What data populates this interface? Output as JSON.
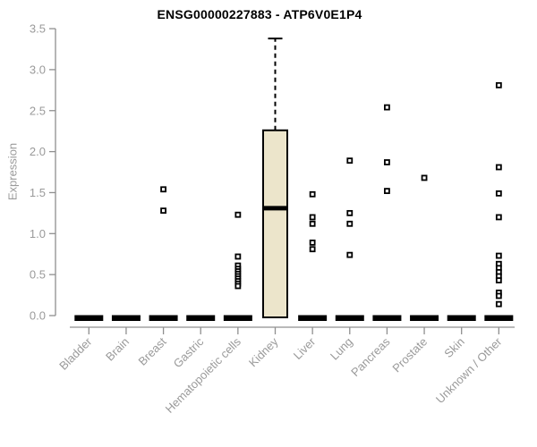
{
  "chart_data": {
    "type": "boxplot",
    "title": "ENSG00000227883 - ATP6V0E1P4",
    "ylabel": "Expression",
    "xlabel": "",
    "ylim": [
      0,
      3.5
    ],
    "yticks": [
      "0.0",
      "0.5",
      "1.0",
      "1.5",
      "2.0",
      "2.5",
      "3.0",
      "3.5"
    ],
    "grid": "off",
    "legend": "none",
    "marker": "open-square",
    "categories": [
      "Bladder",
      "Brain",
      "Breast",
      "Gastric",
      "Hematopoietic cells",
      "Kidney",
      "Liver",
      "Lung",
      "Pancreas",
      "Prostate",
      "Skin",
      "Unknown / Other"
    ],
    "boxes": [
      {
        "category": "Bladder",
        "q1": 0,
        "median": 0,
        "q3": 0,
        "whisker_low": 0,
        "whisker_high": 0,
        "outliers": []
      },
      {
        "category": "Brain",
        "q1": 0,
        "median": 0,
        "q3": 0,
        "whisker_low": 0,
        "whisker_high": 0,
        "outliers": []
      },
      {
        "category": "Breast",
        "q1": 0,
        "median": 0,
        "q3": 0,
        "whisker_low": 0,
        "whisker_high": 0,
        "outliers": [
          1.54,
          1.28
        ]
      },
      {
        "category": "Gastric",
        "q1": 0,
        "median": 0,
        "q3": 0,
        "whisker_low": 0,
        "whisker_high": 0,
        "outliers": []
      },
      {
        "category": "Hematopoietic cells",
        "q1": 0,
        "median": 0,
        "q3": 0,
        "whisker_low": 0,
        "whisker_high": 0,
        "outliers": [
          1.23,
          0.72,
          0.61,
          0.57,
          0.54,
          0.51,
          0.48,
          0.45,
          0.42,
          0.39,
          0.36
        ]
      },
      {
        "category": "Kidney",
        "q1": 0,
        "median": 1.31,
        "q3": 2.26,
        "whisker_low": 0,
        "whisker_high": 3.38,
        "outliers": []
      },
      {
        "category": "Liver",
        "q1": 0,
        "median": 0,
        "q3": 0,
        "whisker_low": 0,
        "whisker_high": 0,
        "outliers": [
          1.48,
          1.2,
          1.12,
          0.89,
          0.81
        ]
      },
      {
        "category": "Lung",
        "q1": 0,
        "median": 0,
        "q3": 0,
        "whisker_low": 0,
        "whisker_high": 0,
        "outliers": [
          1.89,
          1.25,
          1.12,
          0.74
        ]
      },
      {
        "category": "Pancreas",
        "q1": 0,
        "median": 0,
        "q3": 0,
        "whisker_low": 0,
        "whisker_high": 0,
        "outliers": [
          2.54,
          1.87,
          1.52
        ]
      },
      {
        "category": "Prostate",
        "q1": 0,
        "median": 0,
        "q3": 0,
        "whisker_low": 0,
        "whisker_high": 0,
        "outliers": [
          1.68
        ]
      },
      {
        "category": "Skin",
        "q1": 0,
        "median": 0,
        "q3": 0,
        "whisker_low": 0,
        "whisker_high": 0,
        "outliers": []
      },
      {
        "category": "Unknown / Other",
        "q1": 0,
        "median": 0,
        "q3": 0,
        "whisker_low": 0,
        "whisker_high": 0,
        "outliers": [
          2.81,
          1.81,
          1.49,
          1.2,
          0.73,
          0.63,
          0.58,
          0.53,
          0.48,
          0.43,
          0.28,
          0.24,
          0.14
        ]
      }
    ],
    "colors": {
      "box_fill": "#ece5cb",
      "box_border": "#000000",
      "median": "#000000",
      "whisker": "#000000",
      "outlier_stroke": "#000000",
      "outlier_fill": "#ffffff",
      "axis_line": "#8f8f8f",
      "tick_text": "#9a9a9a",
      "title_text": "#000000",
      "background": "#ffffff"
    }
  }
}
